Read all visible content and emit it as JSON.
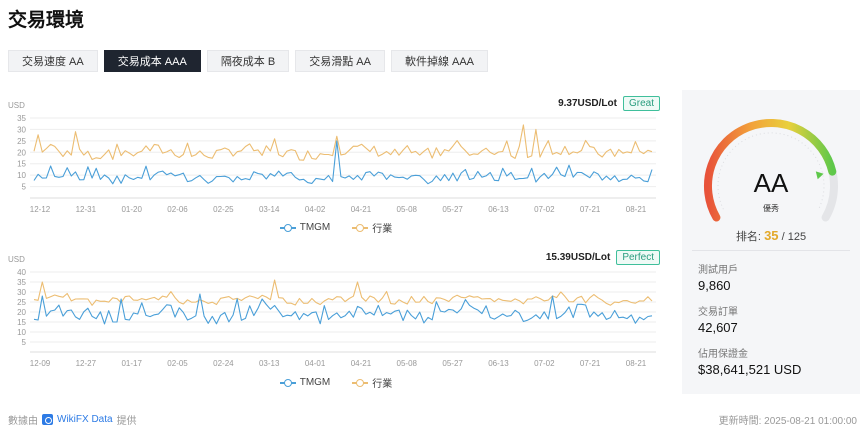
{
  "page_title": "交易環境",
  "tabs": [
    {
      "label": "交易速度 AA",
      "active": false
    },
    {
      "label": "交易成本 AAA",
      "active": true
    },
    {
      "label": "隔夜成本 B",
      "active": false
    },
    {
      "label": "交易滑點 AA",
      "active": false
    },
    {
      "label": "軟件掉線 AAA",
      "active": false
    }
  ],
  "colors": {
    "tmgm": "#4a9fd8",
    "industry": "#ecbd72",
    "accent": "#1f2530"
  },
  "chart_data": [
    {
      "type": "line",
      "unit_label": "USD",
      "headline_value": "9.37USD/Lot",
      "rating": "Great",
      "ylim": [
        0,
        35
      ],
      "y_ticks": [
        "35",
        "30",
        "25",
        "20",
        "15",
        "10",
        "5"
      ],
      "x_ticks": [
        "12-12",
        "12-31",
        "01-20",
        "02-06",
        "02-25",
        "03-14",
        "04-02",
        "04-21",
        "05-08",
        "05-27",
        "06-13",
        "07-02",
        "07-21",
        "08-21"
      ],
      "series": [
        {
          "name": "TMGM",
          "base": 9,
          "amp": 2,
          "spikes": [
            [
              73,
              25
            ],
            [
              113,
              13
            ],
            [
              120,
              13
            ]
          ]
        },
        {
          "name": "行業",
          "base": 20,
          "amp": 2.5,
          "spikes": [
            [
              10,
              29
            ],
            [
              73,
              27
            ],
            [
              114,
              25
            ],
            [
              118,
              32
            ],
            [
              121,
              30
            ]
          ]
        }
      ]
    },
    {
      "type": "line",
      "unit_label": "USD",
      "headline_value": "15.39USD/Lot",
      "rating": "Perfect",
      "ylim": [
        0,
        40
      ],
      "y_ticks": [
        "40",
        "35",
        "30",
        "25",
        "20",
        "15",
        "10",
        "5"
      ],
      "x_ticks": [
        "12-09",
        "12-27",
        "01-17",
        "02-05",
        "02-24",
        "03-13",
        "04-01",
        "04-21",
        "05-08",
        "05-27",
        "06-13",
        "07-02",
        "07-21",
        "08-21"
      ],
      "series": [
        {
          "name": "TMGM",
          "base": 19,
          "amp": 3.5,
          "spikes": [
            [
              2,
              28
            ],
            [
              40,
              29
            ],
            [
              125,
              28
            ]
          ]
        },
        {
          "name": "行業",
          "base": 26,
          "amp": 1.8,
          "spikes": [
            [
              2,
              35
            ],
            [
              58,
              36
            ],
            [
              78,
              35
            ]
          ]
        }
      ]
    }
  ],
  "legend": {
    "tmgm": "TMGM",
    "industry": "行業"
  },
  "score": {
    "grade": "AA",
    "grade_label": "優秀",
    "rank_label": "排名:",
    "rank_value": "35",
    "rank_total": "/ 125",
    "gauge_fraction": 0.82
  },
  "stats": [
    {
      "label": "測試用戶",
      "value": "9,860"
    },
    {
      "label": "交易訂單",
      "value": "42,607"
    },
    {
      "label": "佔用保證金",
      "value": "$38,641,521 USD"
    }
  ],
  "footer": {
    "source_prefix": "數據由",
    "source_brand": "WikiFX Data",
    "source_suffix": "提供",
    "updated": "更新時間:  2025-08-21 01:00:00"
  }
}
